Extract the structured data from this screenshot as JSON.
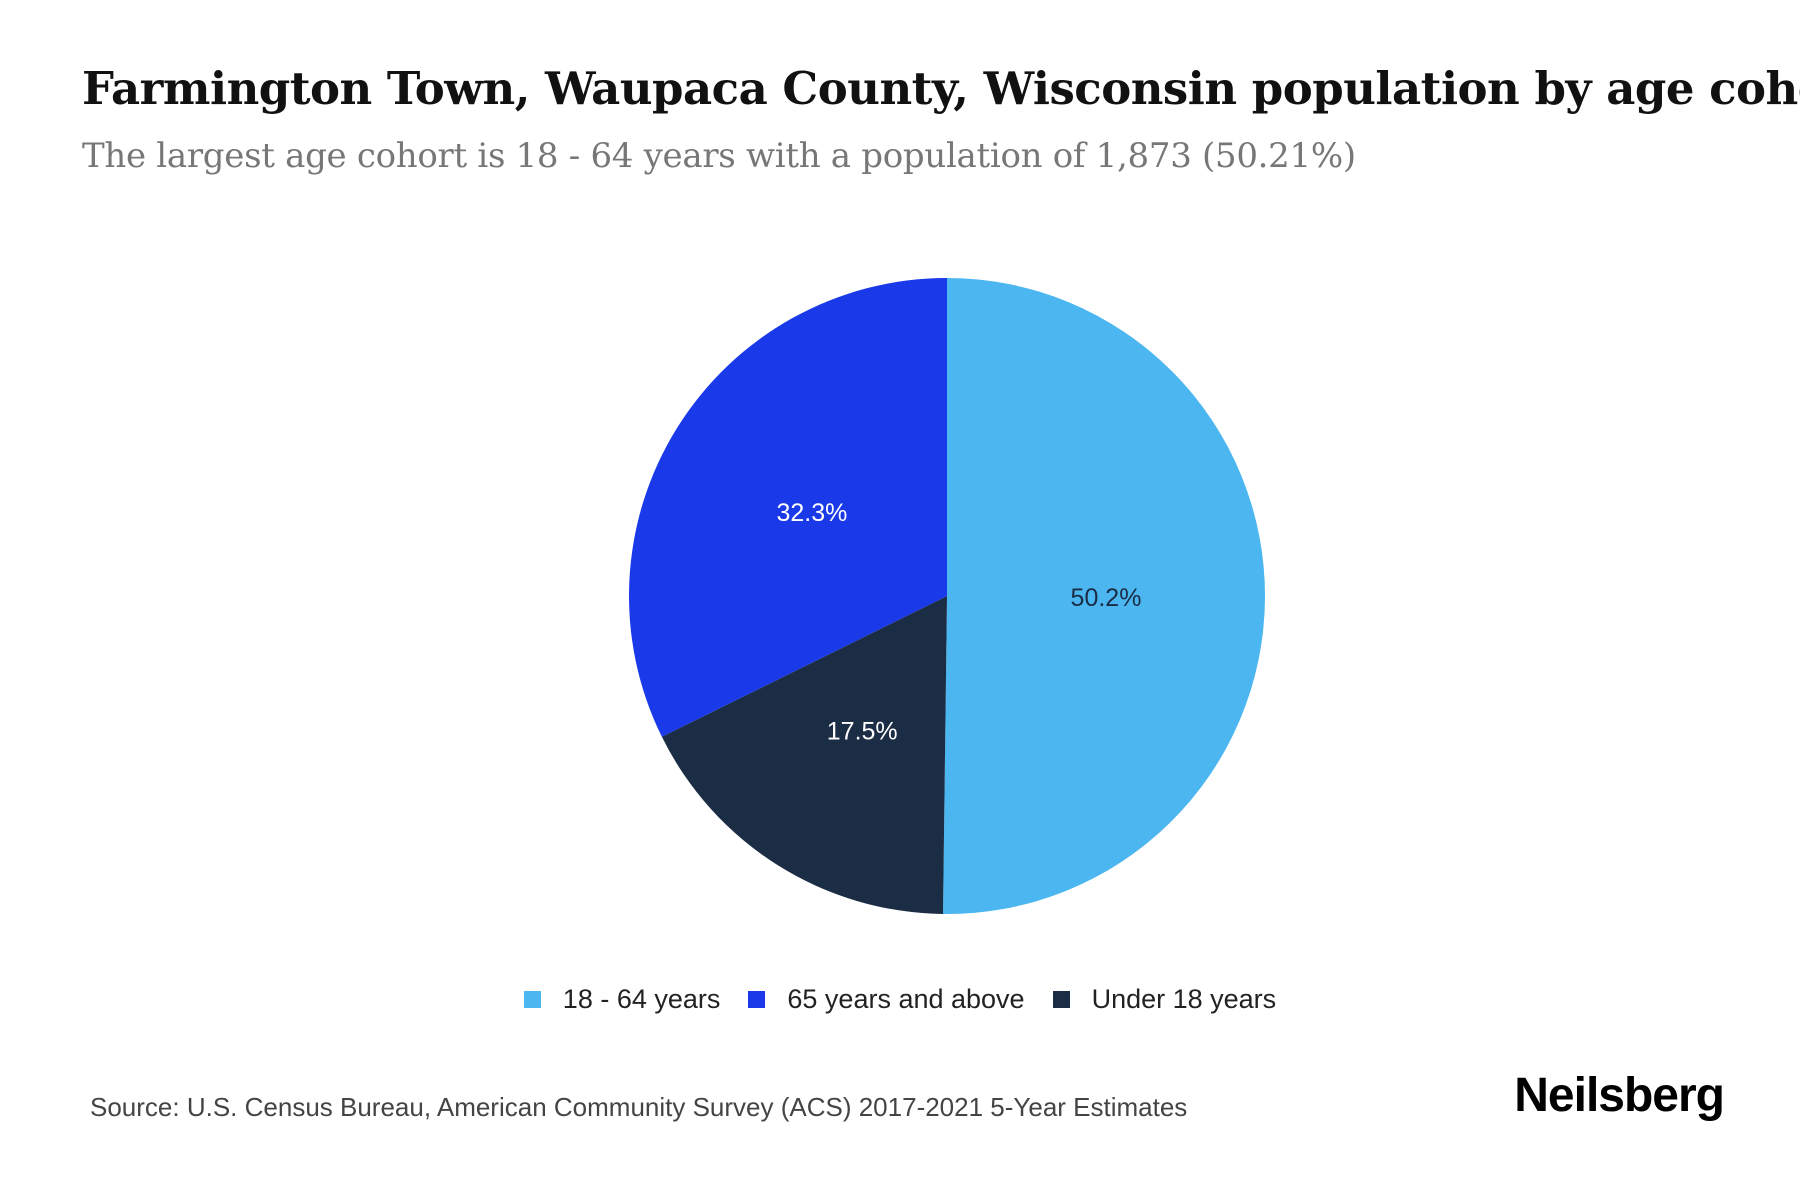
{
  "header": {
    "title": "Farmington Town, Waupaca County, Wisconsin population by age cohort",
    "subtitle": "The largest age cohort is 18 - 64 years with a population of 1,873 (50.21%)"
  },
  "legend": [
    {
      "label": "18 - 64 years",
      "color": "#4bb6ef"
    },
    {
      "label": "65 years and above",
      "color": "#1a3aea"
    },
    {
      "label": "Under 18 years",
      "color": "#1b2c45"
    }
  ],
  "footer": {
    "source": "Source: U.S. Census Bureau, American Community Survey (ACS) 2017-2021 5-Year Estimates",
    "brand": "Neilsberg"
  },
  "chart_data": {
    "type": "pie",
    "title": "Farmington Town, Waupaca County, Wisconsin population by age cohort",
    "subtitle": "The largest age cohort is 18 - 64 years with a population of 1,873 (50.21%)",
    "categories": [
      "18 - 64 years",
      "Under 18 years",
      "65 years and above"
    ],
    "values": [
      50.2,
      17.5,
      32.3
    ],
    "labels": [
      "50.2%",
      "17.5%",
      "32.3%"
    ],
    "colors": [
      "#4bb6ef",
      "#1b2c45",
      "#1a3aea"
    ],
    "label_colors": [
      "#1b2c45",
      "#ffffff",
      "#ffffff"
    ],
    "start_angle": "12 o'clock, clockwise",
    "legend_position": "bottom",
    "annotations": [
      "Largest cohort 18 - 64 years: population 1,873 (50.21%)"
    ]
  }
}
